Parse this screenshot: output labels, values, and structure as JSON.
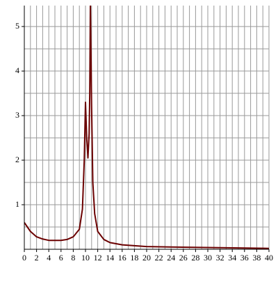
{
  "chart_data": {
    "type": "line",
    "x": [
      0,
      1,
      2,
      3,
      4,
      5,
      6,
      7,
      8,
      9,
      9.5,
      9.8,
      10,
      10.2,
      10.4,
      10.6,
      10.7,
      10.8,
      11,
      11.2,
      11.5,
      12,
      13,
      14,
      16,
      18,
      20,
      24,
      30,
      40
    ],
    "series": [
      {
        "color": "#6b0000",
        "values": [
          0.6,
          0.4,
          0.28,
          0.23,
          0.2,
          0.2,
          0.2,
          0.22,
          0.28,
          0.45,
          0.9,
          2.0,
          3.3,
          2.5,
          2.05,
          2.6,
          3.5,
          5.5,
          3.2,
          1.5,
          0.8,
          0.4,
          0.22,
          0.15,
          0.1,
          0.08,
          0.06,
          0.05,
          0.04,
          0.02
        ]
      }
    ],
    "xlim": [
      0,
      40
    ],
    "ylim": [
      0,
      5.47
    ],
    "xticks": [
      0,
      2,
      4,
      6,
      8,
      10,
      12,
      14,
      16,
      18,
      20,
      22,
      24,
      26,
      28,
      30,
      32,
      34,
      36,
      38,
      40
    ],
    "yticks": [
      1,
      2,
      3,
      4,
      5
    ],
    "xgrid": [
      1,
      2,
      3,
      4,
      5,
      6,
      7,
      8,
      9,
      10,
      11,
      12,
      13,
      14,
      15,
      16,
      17,
      18,
      19,
      20,
      21,
      22,
      23,
      24,
      25,
      26,
      27,
      28,
      29,
      30,
      31,
      32,
      33,
      34,
      35,
      36,
      37,
      38,
      39,
      40
    ],
    "ygrid": [
      0.5,
      1,
      1.5,
      2,
      2.5,
      3,
      3.5,
      4,
      4.5,
      5
    ],
    "grid": true
  }
}
